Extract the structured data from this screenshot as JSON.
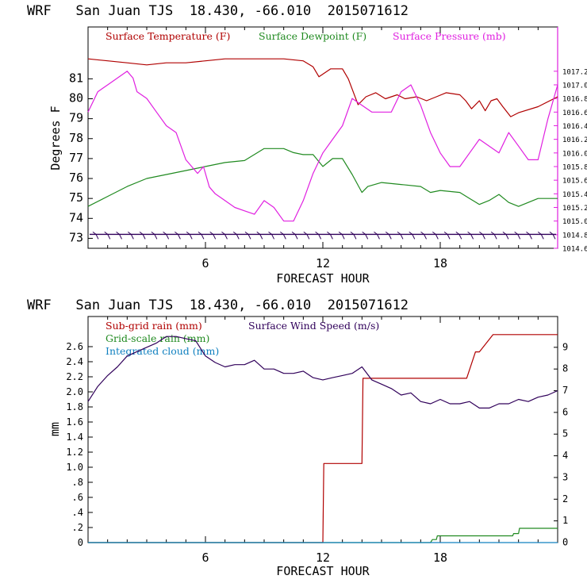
{
  "chart_data": [
    {
      "type": "line",
      "title": "WRF   San Juan TJS  18.430, -66.010  2015071612",
      "xlabel": "FORECAST HOUR",
      "ylabel": "Degrees F",
      "xlim": [
        0,
        24
      ],
      "ylim": [
        72.5,
        83.6
      ],
      "y2lim": [
        1014.6,
        1017.85
      ],
      "x_ticks": [
        "6",
        "12",
        "18"
      ],
      "y_ticks": [
        "73",
        "74",
        "75",
        "76",
        "77",
        "78",
        "79",
        "80",
        "81"
      ],
      "y2_ticks": [
        "1014.6",
        "1014.8",
        "1015.0",
        "1015.2",
        "1015.4",
        "1015.6",
        "1015.8",
        "1016.0",
        "1016.2",
        "1016.4",
        "1016.6",
        "1016.8",
        "1017.0",
        "1017.2"
      ],
      "grid": false,
      "legend": "top",
      "colors": {
        "temperature": "#b00000",
        "dewpoint": "#208a20",
        "pressure": "#e020e0",
        "wind": "#30005a"
      },
      "series": [
        {
          "name": "Surface Temperature (F)",
          "axis": "left",
          "x": [
            0,
            1,
            2,
            3,
            4,
            5,
            6,
            7,
            8,
            9,
            10,
            11,
            11.5,
            11.8,
            12.4,
            13,
            13.3,
            13.8,
            14.2,
            14.7,
            15.2,
            15.8,
            16.2,
            16.8,
            17.3,
            17.8,
            18.3,
            19,
            19.3,
            19.6,
            20,
            20.3,
            20.6,
            20.9,
            21.2,
            21.6,
            22,
            23,
            24
          ],
          "y": [
            82.0,
            81.9,
            81.8,
            81.7,
            81.8,
            81.8,
            81.9,
            82.0,
            82.0,
            82.0,
            82.0,
            81.9,
            81.6,
            81.1,
            81.5,
            81.5,
            81.0,
            79.7,
            80.1,
            80.3,
            80.0,
            80.2,
            80.0,
            80.1,
            79.9,
            80.1,
            80.3,
            80.2,
            79.9,
            79.5,
            79.9,
            79.4,
            79.9,
            80.0,
            79.6,
            79.1,
            79.3,
            79.6,
            80.1
          ]
        },
        {
          "name": "Surface Dewpoint (F)",
          "axis": "left",
          "x": [
            0,
            1,
            2,
            3,
            4,
            5,
            6,
            7,
            8,
            9,
            10,
            10.5,
            11,
            11.5,
            12,
            12.5,
            13,
            13.5,
            14,
            14.3,
            15,
            16,
            17,
            17.5,
            18,
            19,
            19.5,
            20,
            20.5,
            21,
            21.5,
            22,
            22.5,
            23,
            24
          ],
          "y": [
            74.6,
            75.1,
            75.6,
            76.0,
            76.2,
            76.4,
            76.6,
            76.8,
            76.9,
            77.5,
            77.5,
            77.3,
            77.2,
            77.2,
            76.6,
            77.0,
            77.0,
            76.2,
            75.3,
            75.6,
            75.8,
            75.7,
            75.6,
            75.3,
            75.4,
            75.3,
            75.0,
            74.7,
            74.9,
            75.2,
            74.8,
            74.6,
            74.8,
            75.0,
            75.0
          ]
        },
        {
          "name": "Surface Pressure (mb)",
          "axis": "right",
          "x": [
            0,
            0.5,
            1,
            1.5,
            2,
            2.3,
            2.5,
            3,
            3.5,
            4,
            4.5,
            5,
            5.3,
            5.6,
            5.9,
            6.2,
            6.5,
            7,
            7.5,
            8,
            8.5,
            9,
            9.5,
            10,
            10.5,
            11,
            11.5,
            12,
            12.5,
            13,
            13.5,
            14,
            14.5,
            15,
            15.5,
            16,
            16.5,
            17,
            17.5,
            18,
            18.5,
            19,
            19.5,
            20,
            20.5,
            21,
            21.5,
            22,
            22.5,
            23,
            23.5,
            24
          ],
          "y": [
            1016.6,
            1016.9,
            1017.0,
            1017.1,
            1017.2,
            1017.1,
            1016.9,
            1016.8,
            1016.6,
            1016.4,
            1016.3,
            1015.9,
            1015.8,
            1015.7,
            1015.8,
            1015.5,
            1015.4,
            1015.3,
            1015.2,
            1015.15,
            1015.1,
            1015.3,
            1015.2,
            1015.0,
            1015.0,
            1015.3,
            1015.7,
            1016.0,
            1016.2,
            1016.4,
            1016.8,
            1016.7,
            1016.6,
            1016.6,
            1016.6,
            1016.9,
            1017.0,
            1016.7,
            1016.3,
            1016.0,
            1015.8,
            1015.8,
            1016.0,
            1016.2,
            1016.1,
            1016.0,
            1016.3,
            1016.1,
            1015.9,
            1015.9,
            1016.5,
            1017.0
          ]
        }
      ],
      "wind_barbs": {
        "count": 40,
        "color": "#30005a",
        "y": 73.2
      }
    },
    {
      "type": "line",
      "title": "WRF   San Juan TJS  18.430, -66.010  2015071612",
      "xlabel": "FORECAST HOUR",
      "ylabel": "mm",
      "xlim": [
        0,
        24
      ],
      "ylim": [
        0,
        3.0
      ],
      "y2lim": [
        0,
        10.42
      ],
      "x_ticks": [
        "6",
        "12",
        "18"
      ],
      "y_ticks": [
        "0",
        ".2",
        ".4",
        ".6",
        ".8",
        "1.0",
        "1.2",
        "1.4",
        "1.6",
        "1.8",
        "2.0",
        "2.2",
        "2.4",
        "2.6"
      ],
      "y2_ticks": [
        "0",
        "1",
        "2",
        "3",
        "4",
        "5",
        "6",
        "7",
        "8",
        "9"
      ],
      "grid": false,
      "legend": "top",
      "colors": {
        "subgrid": "#b00000",
        "gridscale": "#208a20",
        "cloud": "#1080c0",
        "wind": "#30005a"
      },
      "series": [
        {
          "name": "Sub-grid rain (mm)",
          "axis": "left",
          "x": [
            0,
            11.6,
            11.65,
            12,
            12.05,
            13.3,
            13.35,
            14,
            14.05,
            19.3,
            19.35,
            19.8,
            20,
            20.7,
            20.75,
            24
          ],
          "y": [
            0,
            0,
            0,
            0,
            1.05,
            1.05,
            1.05,
            1.05,
            2.18,
            2.18,
            2.18,
            2.53,
            2.53,
            2.76,
            2.76,
            2.76
          ]
        },
        {
          "name": "Grid-scale rain (mm)",
          "axis": "left",
          "x": [
            0,
            17.5,
            17.6,
            17.8,
            17.85,
            21.7,
            21.75,
            22,
            22.05,
            24
          ],
          "y": [
            0,
            0,
            0.04,
            0.04,
            0.09,
            0.09,
            0.12,
            0.12,
            0.19,
            0.19
          ]
        },
        {
          "name": "Integrated cloud (mm)",
          "axis": "left",
          "x": [
            0,
            24
          ],
          "y": [
            0,
            0
          ]
        },
        {
          "name": "Surface Wind Speed (m/s)",
          "axis": "right",
          "x": [
            0,
            0.5,
            1,
            1.5,
            2,
            2.5,
            3,
            3.5,
            4,
            4.5,
            5,
            5.5,
            6,
            6.5,
            7,
            7.5,
            8,
            8.5,
            9,
            9.5,
            10,
            10.5,
            11,
            11.5,
            12,
            12.5,
            13,
            13.5,
            14,
            14.5,
            15,
            15.5,
            16,
            16.5,
            17,
            17.5,
            18,
            18.5,
            19,
            19.5,
            20,
            20.5,
            21,
            21.5,
            22,
            22.5,
            23,
            23.5,
            24
          ],
          "y": [
            6.5,
            7.2,
            7.7,
            8.1,
            8.6,
            8.8,
            9.0,
            9.2,
            9.5,
            9.5,
            9.4,
            9.3,
            8.6,
            8.3,
            8.1,
            8.2,
            8.2,
            8.4,
            8.0,
            8.0,
            7.8,
            7.8,
            7.9,
            7.6,
            7.5,
            7.6,
            7.7,
            7.8,
            8.1,
            7.5,
            7.3,
            7.1,
            6.8,
            6.9,
            6.5,
            6.4,
            6.6,
            6.4,
            6.4,
            6.5,
            6.2,
            6.2,
            6.4,
            6.4,
            6.6,
            6.5,
            6.7,
            6.8,
            7.0
          ]
        }
      ]
    }
  ]
}
